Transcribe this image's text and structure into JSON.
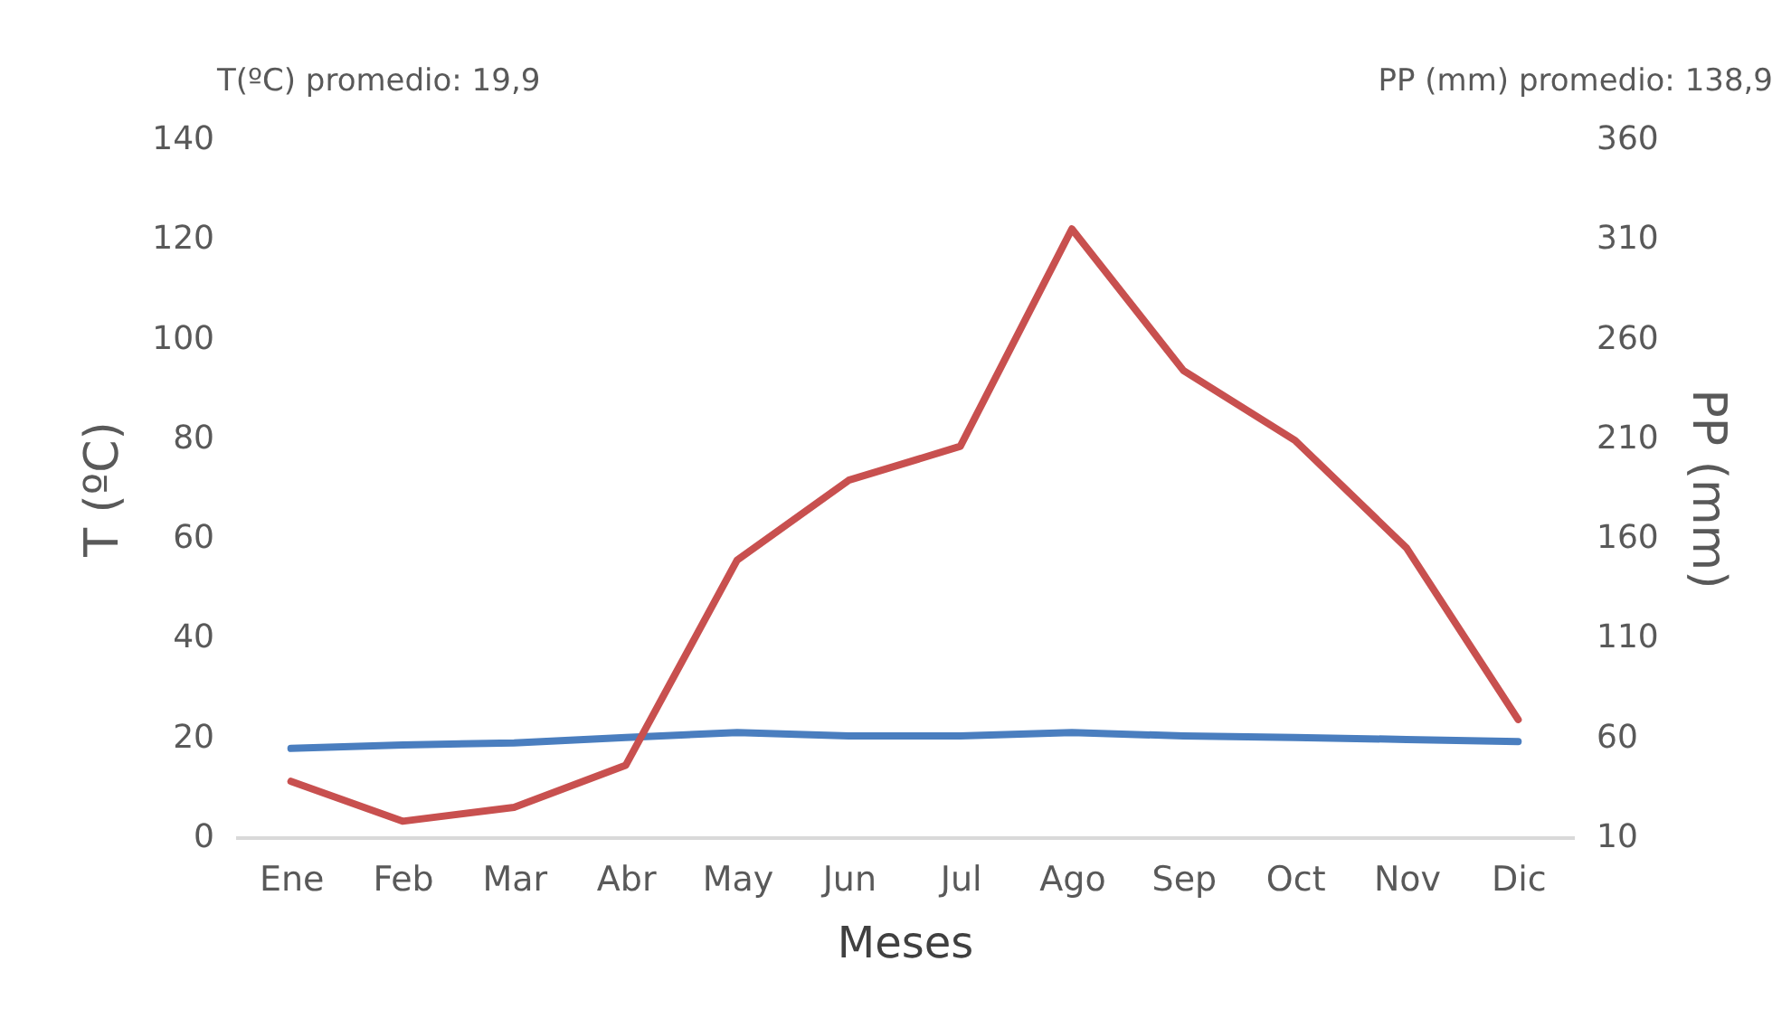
{
  "chart_data": {
    "type": "line",
    "xlabel": "Meses",
    "ylabel": "T (ºC)",
    "y2label": "PP (mm)",
    "annotations": [
      "T(ºC) promedio: 19,9",
      "PP (mm) promedio: 138,9"
    ],
    "categories": [
      "Ene",
      "Feb",
      "Mar",
      "Abr",
      "May",
      "Jun",
      "Jul",
      "Ago",
      "Sep",
      "Oct",
      "Nov",
      "Dic"
    ],
    "series": [
      {
        "color": "#4a7ebf",
        "values": [
          17.8,
          18.5,
          18.9,
          20,
          21,
          20.3,
          20.3,
          21,
          20.3,
          20,
          19.6,
          19.2
        ]
      },
      {
        "color": "#c8504f",
        "axis": "y2",
        "values": [
          38,
          18,
          25,
          46,
          149,
          189,
          206,
          315,
          244,
          209,
          155,
          69
        ]
      }
    ],
    "ylim": [
      0,
      140
    ],
    "yticks": [
      0,
      20,
      40,
      60,
      80,
      100,
      120,
      140
    ],
    "y2lim": [
      10,
      360
    ],
    "y2ticks": [
      10,
      60,
      110,
      160,
      210,
      260,
      310,
      360
    ],
    "grid": false,
    "marker": "none",
    "line_style": "solid"
  }
}
